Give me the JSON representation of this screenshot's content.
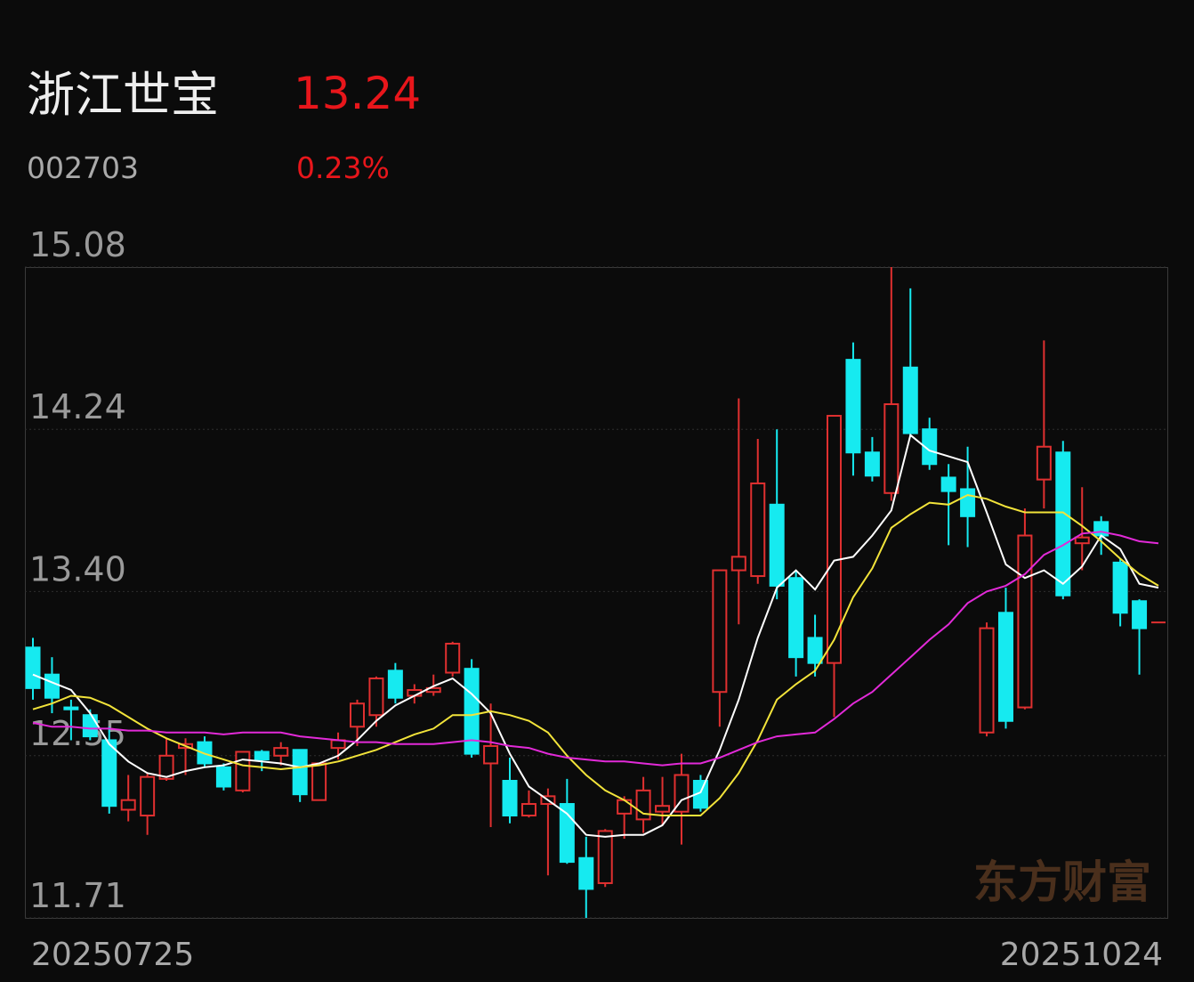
{
  "header": {
    "name": "浙江世宝",
    "price": "13.24",
    "code": "002703",
    "change": "0.23%"
  },
  "chart_data": {
    "type": "candlestick",
    "watermark": "东方财富",
    "categories": [
      "20250725",
      null,
      null,
      null,
      null,
      null,
      null,
      null,
      null,
      null,
      null,
      null,
      null,
      null,
      null,
      null,
      null,
      null,
      null,
      null,
      null,
      null,
      null,
      null,
      null,
      null,
      null,
      null,
      null,
      null,
      null,
      null,
      null,
      null,
      null,
      null,
      null,
      null,
      null,
      null,
      null,
      null,
      null,
      null,
      null,
      null,
      null,
      null,
      null,
      null,
      null,
      null,
      null,
      null,
      null,
      null,
      null,
      null,
      null,
      "20251024"
    ],
    "open": [
      13.11,
      12.97,
      12.8,
      12.76,
      12.63,
      12.27,
      12.24,
      12.43,
      12.59,
      12.62,
      12.49,
      12.37,
      12.57,
      12.55,
      12.58,
      12.32,
      12.59,
      12.7,
      12.76,
      12.99,
      12.86,
      12.88,
      12.98,
      13.0,
      12.51,
      12.42,
      12.24,
      12.3,
      12.3,
      12.02,
      11.89,
      12.25,
      12.22,
      12.26,
      12.26,
      12.42,
      12.88,
      13.51,
      13.48,
      13.85,
      13.47,
      13.16,
      13.03,
      14.6,
      14.12,
      13.91,
      14.56,
      14.24,
      13.99,
      13.93,
      12.67,
      13.29,
      12.8,
      13.98,
      14.12,
      13.65,
      13.76,
      13.55,
      13.35,
      13.24
    ],
    "high": [
      13.16,
      13.06,
      12.84,
      12.79,
      12.7,
      12.45,
      12.46,
      12.64,
      12.64,
      12.65,
      12.51,
      12.57,
      12.58,
      12.62,
      12.58,
      12.51,
      12.67,
      12.84,
      12.96,
      13.03,
      12.92,
      12.97,
      13.14,
      13.05,
      12.82,
      12.54,
      12.37,
      12.38,
      12.43,
      12.13,
      12.17,
      12.34,
      12.44,
      12.44,
      12.56,
      12.45,
      13.51,
      14.4,
      14.19,
      14.24,
      13.51,
      13.28,
      14.31,
      14.69,
      14.2,
      15.08,
      14.97,
      14.3,
      14.06,
      14.15,
      13.24,
      13.42,
      13.83,
      14.7,
      14.18,
      13.94,
      13.79,
      13.57,
      13.36,
      13.24
    ],
    "low": [
      12.84,
      12.77,
      12.63,
      12.63,
      12.25,
      12.21,
      12.14,
      12.42,
      12.45,
      12.49,
      12.37,
      12.36,
      12.47,
      12.5,
      12.31,
      12.32,
      12.53,
      12.6,
      12.7,
      12.82,
      12.82,
      12.86,
      12.96,
      12.54,
      12.18,
      12.2,
      12.23,
      11.93,
      11.99,
      11.71,
      11.87,
      12.12,
      12.15,
      12.19,
      12.09,
      12.26,
      12.7,
      13.23,
      13.44,
      13.36,
      12.96,
      12.96,
      12.75,
      14.0,
      13.97,
      13.87,
      14.2,
      14.03,
      13.64,
      13.63,
      12.65,
      12.69,
      12.79,
      13.83,
      13.36,
      13.51,
      13.59,
      13.22,
      12.97,
      13.24
    ],
    "close": [
      12.9,
      12.85,
      12.79,
      12.65,
      12.29,
      12.32,
      12.44,
      12.55,
      12.61,
      12.51,
      12.39,
      12.57,
      12.53,
      12.59,
      12.35,
      12.51,
      12.63,
      12.82,
      12.95,
      12.85,
      12.89,
      12.9,
      13.13,
      12.56,
      12.6,
      12.24,
      12.3,
      12.34,
      12.0,
      11.86,
      12.16,
      12.32,
      12.37,
      12.29,
      12.45,
      12.28,
      13.51,
      13.58,
      13.96,
      13.43,
      13.06,
      13.03,
      14.31,
      14.12,
      14.0,
      14.37,
      14.22,
      14.06,
      13.92,
      13.79,
      13.21,
      12.73,
      13.69,
      14.15,
      13.38,
      13.68,
      13.69,
      13.29,
      13.21,
      13.24
    ],
    "lines": [
      {
        "color": "#ffffff",
        "values": [
          12.97,
          12.93,
          12.89,
          12.77,
          12.61,
          12.52,
          12.46,
          12.44,
          12.47,
          12.49,
          12.5,
          12.53,
          12.52,
          12.51,
          12.49,
          12.51,
          12.55,
          12.63,
          12.73,
          12.81,
          12.86,
          12.91,
          12.95,
          12.87,
          12.77,
          12.56,
          12.39,
          12.32,
          12.25,
          12.14,
          12.13,
          12.14,
          12.14,
          12.19,
          12.32,
          12.36,
          12.58,
          12.84,
          13.16,
          13.42,
          13.51,
          13.41,
          13.56,
          13.58,
          13.69,
          13.82,
          14.21,
          14.13,
          14.1,
          14.07,
          13.81,
          13.54,
          13.47,
          13.51,
          13.44,
          13.53,
          13.69,
          13.62,
          13.44,
          13.42
        ]
      },
      {
        "color": "#f2e33a",
        "values": [
          12.79,
          12.82,
          12.86,
          12.85,
          12.81,
          12.75,
          12.69,
          12.64,
          12.6,
          12.56,
          12.53,
          12.5,
          12.49,
          12.48,
          12.49,
          12.5,
          12.52,
          12.55,
          12.58,
          12.62,
          12.66,
          12.69,
          12.76,
          12.76,
          12.78,
          12.76,
          12.73,
          12.67,
          12.55,
          12.45,
          12.37,
          12.32,
          12.25,
          12.24,
          12.24,
          12.24,
          12.33,
          12.46,
          12.63,
          12.84,
          12.92,
          12.99,
          13.15,
          13.37,
          13.52,
          13.73,
          13.8,
          13.86,
          13.85,
          13.9,
          13.88,
          13.84,
          13.81,
          13.81,
          13.81,
          13.74,
          13.66,
          13.57,
          13.49,
          13.43
        ]
      },
      {
        "color": "#e22ad8",
        "values": [
          12.72,
          12.7,
          12.7,
          12.69,
          12.69,
          12.68,
          12.68,
          12.67,
          12.67,
          12.67,
          12.66,
          12.67,
          12.67,
          12.67,
          12.65,
          12.64,
          12.63,
          12.62,
          12.62,
          12.61,
          12.61,
          12.61,
          12.62,
          12.63,
          12.62,
          12.6,
          12.59,
          12.56,
          12.54,
          12.53,
          12.52,
          12.52,
          12.51,
          12.5,
          12.51,
          12.51,
          12.54,
          12.58,
          12.62,
          12.65,
          12.66,
          12.67,
          12.74,
          12.82,
          12.88,
          12.97,
          13.06,
          13.15,
          13.23,
          13.34,
          13.4,
          13.43,
          13.49,
          13.59,
          13.64,
          13.7,
          13.71,
          13.69,
          13.66,
          13.65
        ]
      }
    ],
    "up_color": "#e03030",
    "down_color": "#16eaf0",
    "ylim": [
      11.71,
      15.08
    ],
    "yticks": [
      15.08,
      14.24,
      {
        "value": 13.4,
        "label": "13.40"
      },
      12.55,
      11.71
    ],
    "grid": true
  }
}
